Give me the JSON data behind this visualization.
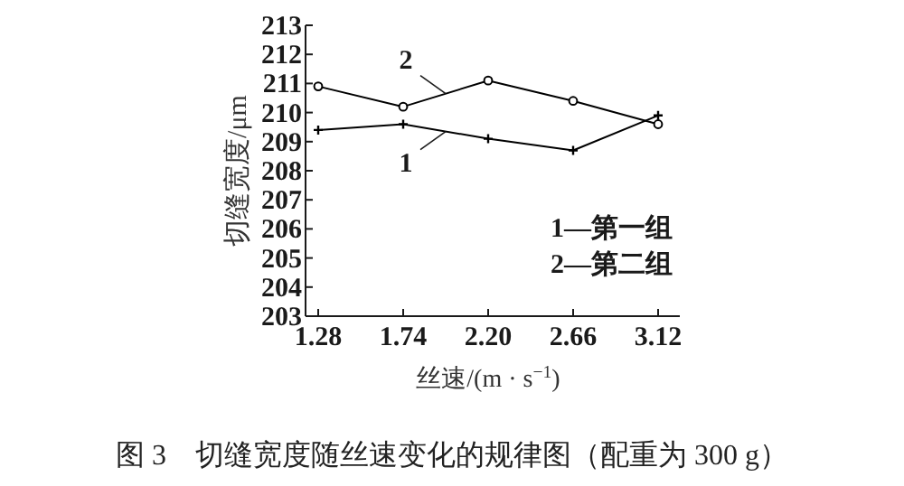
{
  "chart_data": {
    "type": "line",
    "title": "图 3　切缝宽度随丝速变化的规律图（配重为 300 g）",
    "xlabel": "丝速/(m · s$^{−1}$)",
    "ylabel": "切缝宽度/μm",
    "categories": [
      "1.28",
      "1.74",
      "2.20",
      "2.66",
      "3.12"
    ],
    "series": [
      {
        "name": "1",
        "color": "#000000",
        "marker": "cross",
        "values": [
          209.4,
          209.6,
          209.1,
          208.7,
          209.9
        ]
      },
      {
        "name": "2",
        "color": "#000000",
        "marker": "circle",
        "values": [
          210.9,
          210.2,
          211.1,
          210.4,
          209.6
        ]
      }
    ],
    "annotations": [
      "1—第一组",
      "2—第二组"
    ],
    "ylim": [
      203,
      213
    ],
    "yticks": [
      203,
      204,
      205,
      206,
      207,
      208,
      209,
      210,
      211,
      212,
      213
    ],
    "legend": false,
    "grid": false,
    "line_style": "solid"
  }
}
